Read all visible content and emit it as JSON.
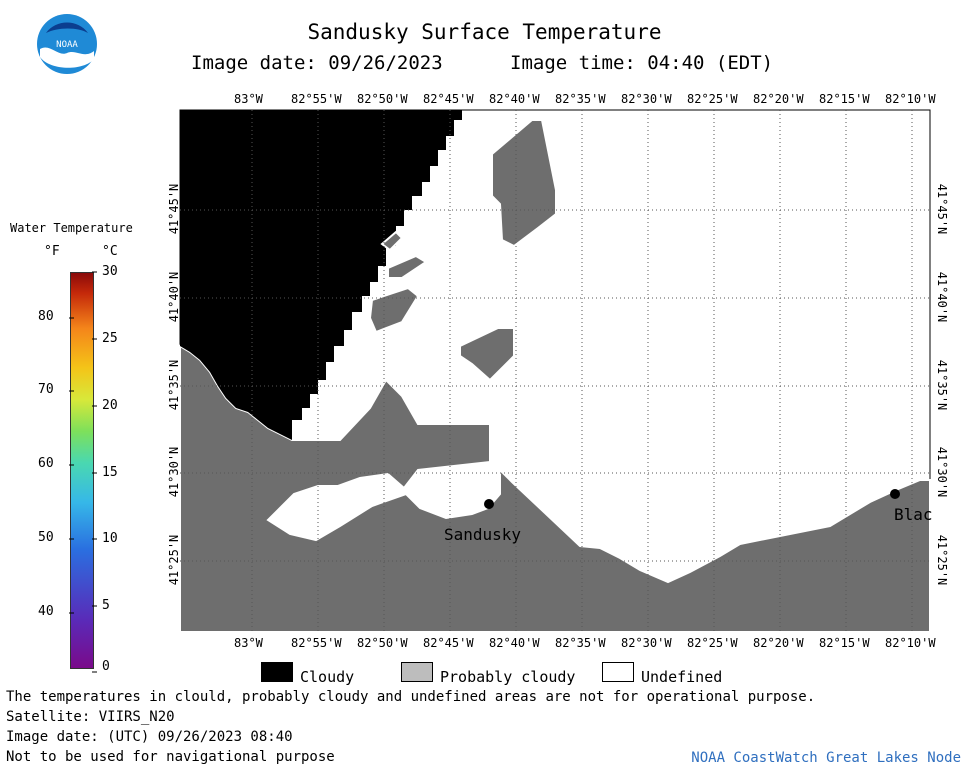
{
  "header": {
    "title": "Sandusky Surface Temperature",
    "image_date_label": "Image date: 09/26/2023",
    "image_time_label": "Image time: 04:40 (EDT)"
  },
  "colorbar": {
    "title": "Water Temperature",
    "unit_f": "°F",
    "unit_c": "°C",
    "f_ticks": [
      "80",
      "70",
      "60",
      "50",
      "40"
    ],
    "c_ticks": [
      "30",
      "25",
      "20",
      "15",
      "10",
      "5",
      "0"
    ]
  },
  "map": {
    "lon_ticks": [
      "83°W",
      "82°55'W",
      "82°50'W",
      "82°45'W",
      "82°40'W",
      "82°35'W",
      "82°30'W",
      "82°25'W",
      "82°20'W",
      "82°15'W",
      "82°10'W"
    ],
    "lat_ticks": [
      "41°45'N",
      "41°40'N",
      "41°35'N",
      "41°30'N",
      "41°25'N"
    ],
    "places": [
      {
        "name": "Sandusky"
      },
      {
        "name": "Blac"
      }
    ],
    "colors": {
      "cloudy": "#000000",
      "probably_cloudy": "#6e6e6e",
      "undefined": "#ffffff"
    }
  },
  "legend": {
    "cloudy": "Cloudy",
    "probably_cloudy": "Probably cloudy",
    "undefined": "Undefined"
  },
  "footer": {
    "disclaimer": "The temperatures in clould, probably cloudy and undefined areas are not for operational purpose.",
    "satellite": "Satellite: VIIRS_N20",
    "utc_date": "Image date: (UTC) 09/26/2023  08:40",
    "navigation": "Not to be used for navigational purpose",
    "credit": "NOAA CoastWatch Great Lakes Node"
  }
}
